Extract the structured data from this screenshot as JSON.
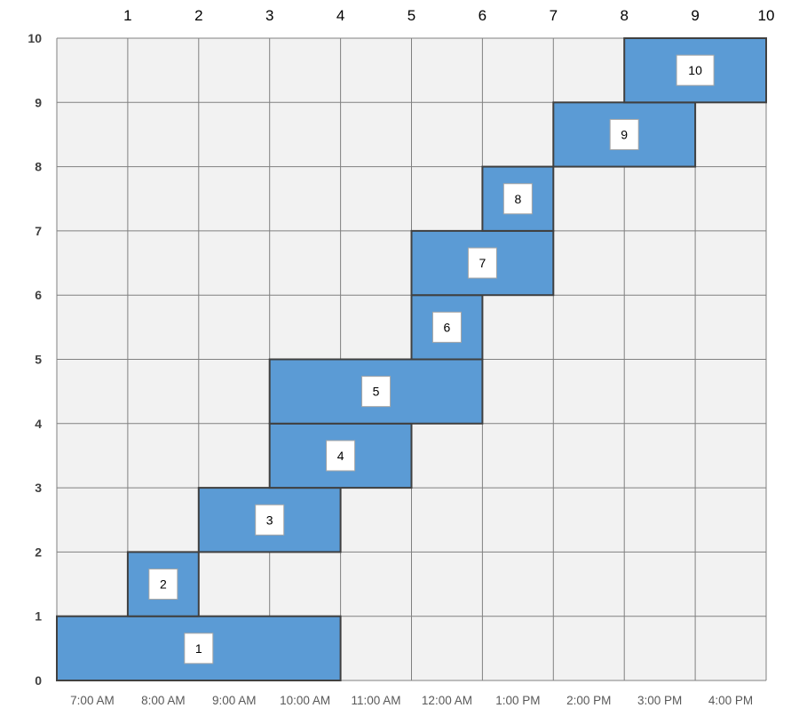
{
  "chart_data": {
    "type": "bar",
    "top_ticks": [
      "1",
      "2",
      "3",
      "4",
      "5",
      "6",
      "7",
      "8",
      "9",
      "10"
    ],
    "y_ticks": [
      "0",
      "1",
      "2",
      "3",
      "4",
      "5",
      "6",
      "7",
      "8",
      "9",
      "10"
    ],
    "x_tick_labels": [
      "7:00 AM",
      "8:00 AM",
      "9:00 AM",
      "10:00 AM",
      "11:00 AM",
      "12:00 AM",
      "1:00 PM",
      "2:00 PM",
      "3:00 PM",
      "4:00 PM"
    ],
    "xlim": [
      0,
      10
    ],
    "ylim": [
      0,
      10
    ],
    "grid": true,
    "segments": [
      {
        "label": "1",
        "x_start": 0,
        "x_end": 4,
        "y_start": 0,
        "y_end": 1
      },
      {
        "label": "2",
        "x_start": 1,
        "x_end": 2,
        "y_start": 1,
        "y_end": 2
      },
      {
        "label": "3",
        "x_start": 2,
        "x_end": 4,
        "y_start": 2,
        "y_end": 3
      },
      {
        "label": "4",
        "x_start": 3,
        "x_end": 5,
        "y_start": 3,
        "y_end": 4
      },
      {
        "label": "5",
        "x_start": 3,
        "x_end": 6,
        "y_start": 4,
        "y_end": 5
      },
      {
        "label": "6",
        "x_start": 5,
        "x_end": 6,
        "y_start": 5,
        "y_end": 6
      },
      {
        "label": "7",
        "x_start": 5,
        "x_end": 7,
        "y_start": 6,
        "y_end": 7
      },
      {
        "label": "8",
        "x_start": 6,
        "x_end": 7,
        "y_start": 7,
        "y_end": 8
      },
      {
        "label": "9",
        "x_start": 7,
        "x_end": 9,
        "y_start": 8,
        "y_end": 9
      },
      {
        "label": "10",
        "x_start": 8,
        "x_end": 10,
        "y_start": 9,
        "y_end": 10
      }
    ],
    "colors": {
      "bar_fill": "#5b9bd5",
      "bar_stroke": "#404040",
      "plot_bg": "#f2f2f2",
      "grid": "#808080",
      "label_box": "#ffffff"
    }
  }
}
